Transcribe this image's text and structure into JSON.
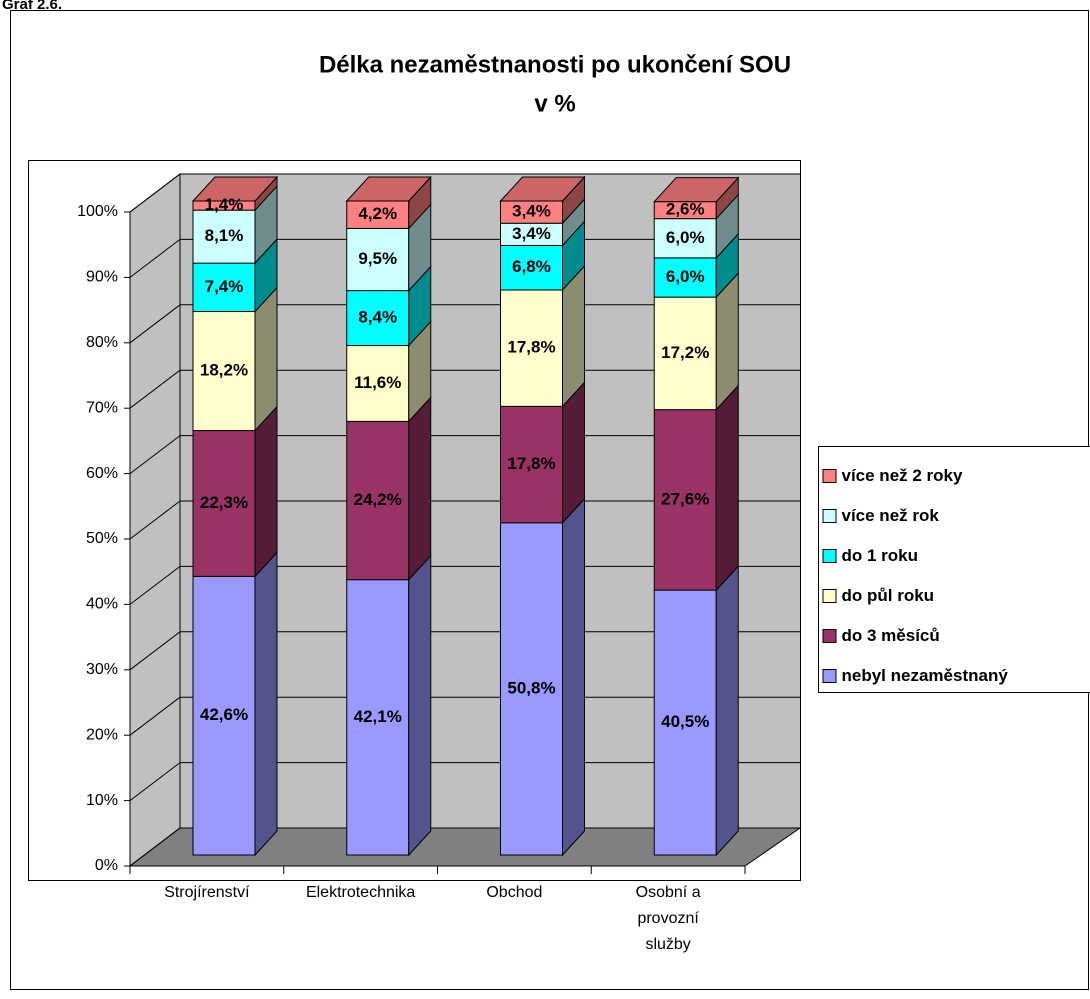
{
  "chart_data": {
    "type": "bar3d_stacked",
    "label": "Graf 2.6.",
    "title": "Délka nezaměstnanosti po ukončení SOU",
    "subtitle": "v %",
    "categories": [
      "Strojírenství",
      "Elektrotechnika",
      "Obchod",
      "Osobní a provozní služby"
    ],
    "series": [
      {
        "name": "nebyl nezaměstnaný",
        "color": "#9999ff",
        "values": [
          42.6,
          42.1,
          50.8,
          40.5
        ],
        "value_labels": [
          "42,6%",
          "42,1%",
          "50,8%",
          "40,5%"
        ]
      },
      {
        "name": "do 3 měsíců",
        "color": "#993366",
        "values": [
          22.3,
          24.2,
          17.8,
          27.6
        ],
        "value_labels": [
          "22,3%",
          "24,2%",
          "17,8%",
          "27,6%"
        ]
      },
      {
        "name": "do půl roku",
        "color": "#ffffcc",
        "values": [
          18.2,
          11.6,
          17.8,
          17.2
        ],
        "value_labels": [
          "18,2%",
          "11,6%",
          "17,8%",
          "17,2%"
        ]
      },
      {
        "name": "do 1 roku",
        "color": "#00ffff",
        "values": [
          7.4,
          8.4,
          6.8,
          6.0
        ],
        "value_labels": [
          "7,4%",
          "8,4%",
          "6,8%",
          "6,0%"
        ]
      },
      {
        "name": "více než rok",
        "color": "#ccffff",
        "values": [
          8.1,
          9.5,
          3.4,
          6.0
        ],
        "value_labels": [
          "8,1%",
          "9,5%",
          "3,4%",
          "6,0%"
        ]
      },
      {
        "name": "více než 2 roky",
        "color": "#ff8080",
        "values": [
          1.4,
          4.2,
          3.4,
          2.6
        ],
        "value_labels": [
          "1,4%",
          "4,2%",
          "3,4%",
          "2,6%"
        ]
      }
    ],
    "ylim": [
      0,
      100
    ],
    "yticks": [
      {
        "value": 0,
        "label": "0%"
      },
      {
        "value": 10,
        "label": "10%"
      },
      {
        "value": 20,
        "label": "20%"
      },
      {
        "value": 30,
        "label": "30%"
      },
      {
        "value": 40,
        "label": "40%"
      },
      {
        "value": 50,
        "label": "50%"
      },
      {
        "value": 60,
        "label": "60%"
      },
      {
        "value": 70,
        "label": "70%"
      },
      {
        "value": 80,
        "label": "80%"
      },
      {
        "value": 90,
        "label": "90%"
      },
      {
        "value": 100,
        "label": "100%"
      }
    ],
    "grid": true,
    "legend": "right"
  }
}
